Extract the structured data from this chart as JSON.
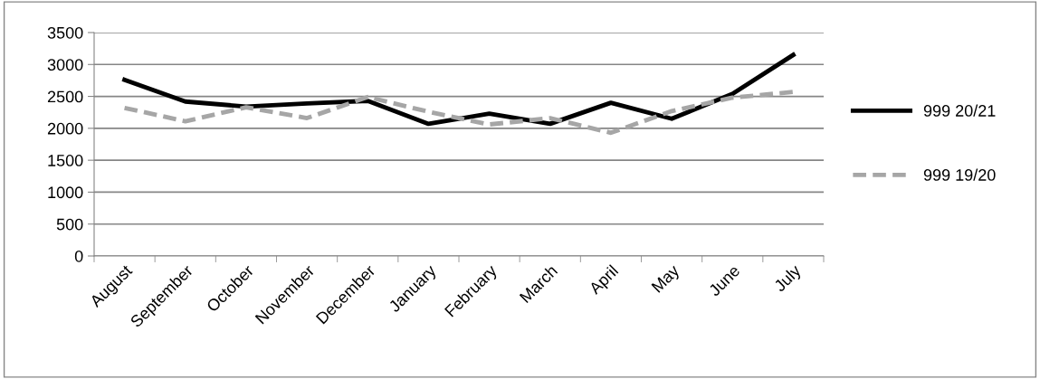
{
  "chart_data": {
    "type": "line",
    "categories": [
      "August",
      "September",
      "October",
      "November",
      "December",
      "January",
      "February",
      "March",
      "April",
      "May",
      "June",
      "July"
    ],
    "series": [
      {
        "name": "999 20/21",
        "color": "#000000",
        "line_style": "solid",
        "values": [
          2760,
          2420,
          2340,
          2390,
          2430,
          2070,
          2230,
          2070,
          2400,
          2150,
          2540,
          3150
        ]
      },
      {
        "name": "999 19/20",
        "color": "#a6a6a6",
        "line_style": "dashed",
        "values": [
          2320,
          2110,
          2330,
          2160,
          2490,
          2260,
          2060,
          2160,
          1930,
          2270,
          2480,
          2570
        ]
      }
    ],
    "ylim": [
      0,
      3500
    ],
    "yticks": [
      0,
      500,
      1000,
      1500,
      2000,
      2500,
      3000,
      3500
    ],
    "grid": "y",
    "legend": "right",
    "marker": "none"
  }
}
